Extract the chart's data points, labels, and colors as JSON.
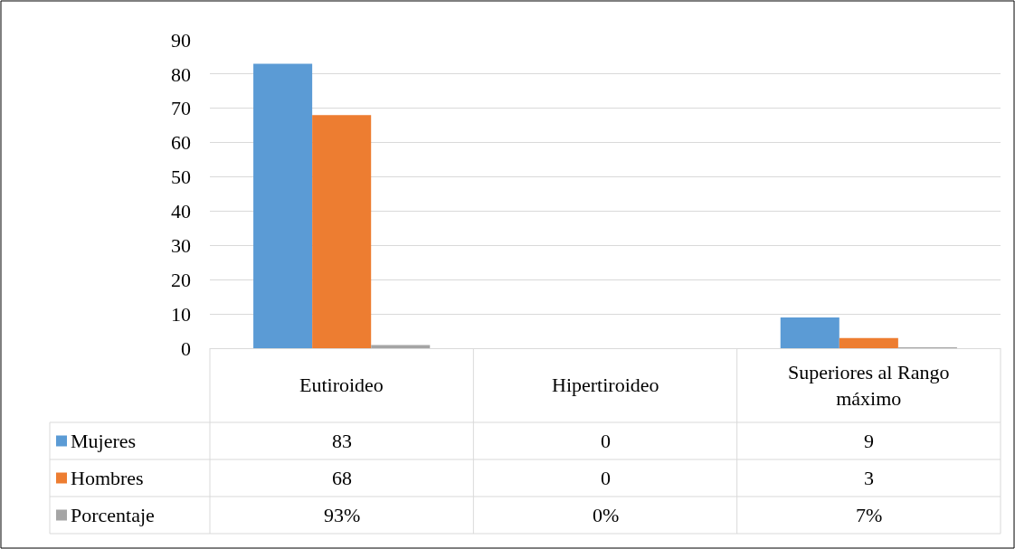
{
  "chart_data": {
    "type": "bar",
    "categories": [
      "Eutiroideo",
      "Hipertiroideo",
      "Superiores al Rango máximo"
    ],
    "series": [
      {
        "name": "Mujeres",
        "color": "#5b9bd5",
        "values": [
          83,
          0,
          9
        ],
        "value_labels": [
          "83",
          "0",
          "9"
        ]
      },
      {
        "name": "Hombres",
        "color": "#ed7d31",
        "values": [
          68,
          0,
          3
        ],
        "value_labels": [
          "68",
          "0",
          "3"
        ]
      },
      {
        "name": "Porcentaje",
        "color": "#a5a5a5",
        "values": [
          0.93,
          0,
          0.07
        ],
        "value_labels": [
          "93%",
          "0%",
          "7%"
        ]
      }
    ],
    "ylim": [
      0,
      90
    ],
    "yticks": [
      0,
      10,
      20,
      30,
      40,
      50,
      60,
      70,
      80,
      90
    ],
    "grid": "y",
    "legend": "bottom left"
  }
}
